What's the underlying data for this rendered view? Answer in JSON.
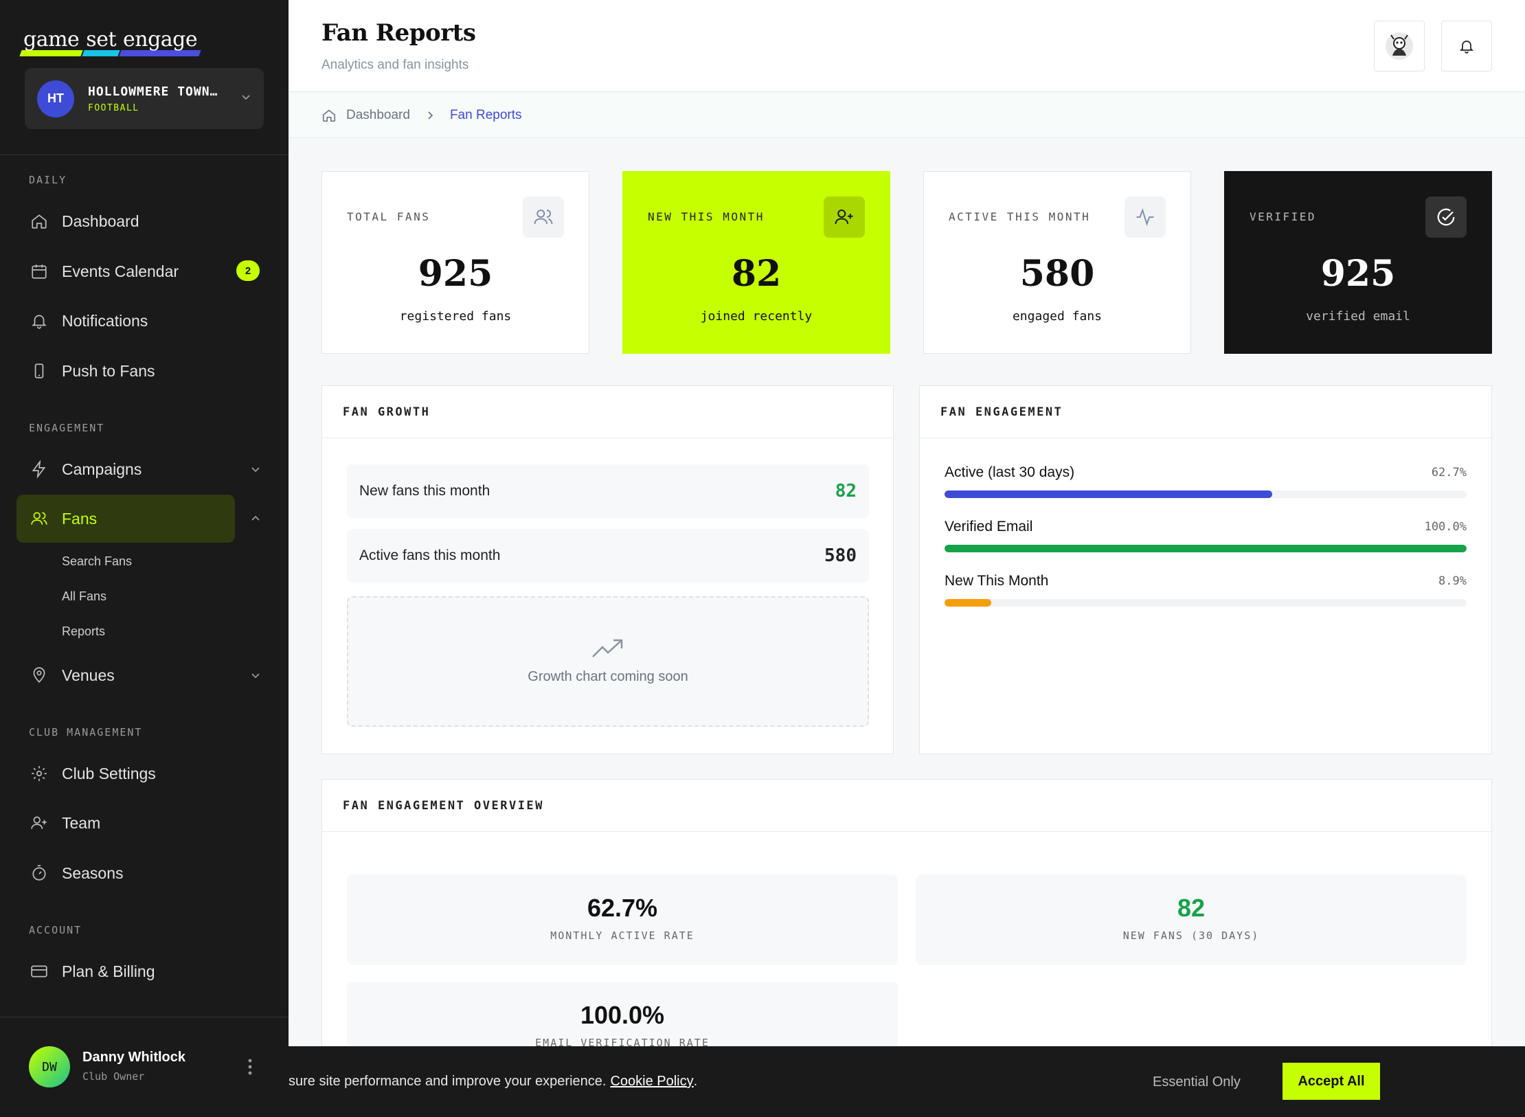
{
  "brand": {
    "word1": "game",
    "word2": "set",
    "word3": "engage"
  },
  "club": {
    "initials": "HT",
    "name": "HOLLOWMERE TOWN…",
    "sport": "FOOTBALL"
  },
  "sidebar": {
    "sections": [
      "DAILY",
      "ENGAGEMENT",
      "CLUB MANAGEMENT",
      "ACCOUNT"
    ],
    "items": [
      {
        "label": "Dashboard",
        "icon": "home-icon"
      },
      {
        "label": "Events Calendar",
        "icon": "calendar-icon",
        "badge": "2"
      },
      {
        "label": "Notifications",
        "icon": "bell-icon"
      },
      {
        "label": "Push to Fans",
        "icon": "phone-icon"
      },
      {
        "label": "Campaigns",
        "icon": "bolt-icon"
      },
      {
        "label": "Fans",
        "icon": "users-icon"
      },
      {
        "label": "Venues",
        "icon": "pin-icon"
      },
      {
        "label": "Club Settings",
        "icon": "gear-icon"
      },
      {
        "label": "Team",
        "icon": "user-plus-icon"
      },
      {
        "label": "Seasons",
        "icon": "timer-icon"
      },
      {
        "label": "Plan & Billing",
        "icon": "card-icon"
      }
    ],
    "fans_sub": [
      "Search Fans",
      "All Fans",
      "Reports"
    ]
  },
  "user": {
    "initials": "DW",
    "name": "Danny Whitlock",
    "role": "Club Owner"
  },
  "header": {
    "title": "Fan Reports",
    "subtitle": "Analytics and fan insights"
  },
  "breadcrumb": {
    "home": "Dashboard",
    "current": "Fan Reports"
  },
  "stats": [
    {
      "label": "TOTAL FANS",
      "value": "925",
      "note": "registered fans"
    },
    {
      "label": "NEW THIS MONTH",
      "value": "82",
      "note": "joined recently"
    },
    {
      "label": "ACTIVE THIS MONTH",
      "value": "580",
      "note": "engaged fans"
    },
    {
      "label": "VERIFIED",
      "value": "925",
      "note": "verified email"
    }
  ],
  "growth": {
    "title": "FAN GROWTH",
    "rows": [
      {
        "label": "New fans this month",
        "value": "82"
      },
      {
        "label": "Active fans this month",
        "value": "580"
      }
    ],
    "placeholder": "Growth chart coming soon"
  },
  "engagement": {
    "title": "FAN ENGAGEMENT",
    "rows": [
      {
        "label": "Active (last 30 days)",
        "pct_text": "62.7%",
        "pct": 62.7,
        "color": "#3d4bd6"
      },
      {
        "label": "Verified Email",
        "pct_text": "100.0%",
        "pct": 100.0,
        "color": "#16a34a"
      },
      {
        "label": "New This Month",
        "pct_text": "8.9%",
        "pct": 8.9,
        "color": "#f59e0b"
      }
    ]
  },
  "overview": {
    "title": "FAN ENGAGEMENT OVERVIEW",
    "items": [
      {
        "value": "62.7%",
        "label": "MONTHLY ACTIVE RATE"
      },
      {
        "value": "82",
        "label": "NEW FANS (30 DAYS)"
      },
      {
        "value": "100.0%",
        "label": "EMAIL VERIFICATION RATE"
      }
    ]
  },
  "cookie": {
    "text": "sure site performance and improve your experience.",
    "link": "Cookie Policy",
    "essential": "Essential Only",
    "accept": "Accept All"
  },
  "colors": {
    "accent_lime": "#c6ff00",
    "brand_blue": "#3d4bd6",
    "green": "#16a34a",
    "amber": "#f59e0b"
  }
}
